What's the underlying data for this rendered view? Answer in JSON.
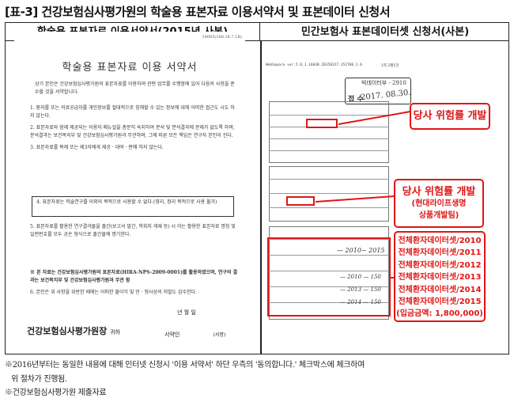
{
  "title": "[표-3] 건강보험심사평가원의 학술용 표본자료 이용서약서 및 표본데이터 신청서",
  "table": {
    "left_header": "학술용 표본자료 이용서약서(2015년 사본)",
    "right_header": "민간보험사 표본데이터셋 신청서(사본)"
  },
  "left_doc": {
    "code": "10005(180.16.7.1B)",
    "doc_title": "학술용 표본자료 이용 서약서",
    "intro": "상기 본인은 건강보험심사평가원의 표본자료를 이용하여 관련 업무를 수행함에 있어 다음의 사항을 준수할 것을 서약합니다.",
    "item1": "1. 환자를 또는 의료공급자를 개인정보를 절대적으로 침해할 수 있는 정보에 대해 어떠한 접근도 시도 하지 않는다.",
    "item2": "2. 표본자료와 함께 제공되는 이용자 매뉴얼을 충분히 숙지하여 분석 및 분석결과에 문제가 없도록 하며, 분석결과는 보건복지부 및 건강보험심사평가원과 무관하며, 그에 따른 모든 책임은 연구자 본인이 진다.",
    "item3": "3. 표본자료를 복제 또는 제3자에게 제공 · 대여 · 판매 하지 않는다.",
    "item4": "4. 표본자료는 학술연구를 이외의 목적으로 사용할 수 없다.(영리, 정리 목적으로 사용 불가)",
    "item5": "5. 표본자료를 활용한 연구결과물을 출간(보고서 발간, 학회지 게재 등) 시 아는 활용한 표본자료 명칭 및 일련번호를 모두 공손 형식으로 출간물에 명기한다.",
    "note": "※ 본 자료는 건강보험심사평가원의 표본자료(HIRA-NPS-2009-0001)를 활용하였으며, 연구의 결과는 보건복지부 및 건강보험심사평가원과 무관 함",
    "item6": "6. 본인은 위 사항을 위반한 때에는 어떠한 불이익 및 민 · 형사상의 처벌도 감수한다.",
    "date_label": "년     월     일",
    "signer_label": "서약인",
    "sign_mark": "(서명)",
    "org": "건강보험심사평가원장",
    "org_suffix": "귀하"
  },
  "right_doc": {
    "ws_line": "WebSquare ver.5.0_1.1603B.20150327.152708_1.6",
    "page_label": "1쪽 2월5건",
    "stamp_top": "빅데이터부 - 2910",
    "stamp_label": "접 수",
    "stamp_date": "2017. 08.30.",
    "hand_a": "— 2010~ 2015",
    "hand_b": "— 2010 — 150",
    "hand_c": "— 2013 — 150",
    "hand_d": "— 2014 — 150"
  },
  "callouts": {
    "c1": "당사 위험률 개발",
    "c2_main": "당사 위험률 개발",
    "c2_sub1": "(현대라이프생명",
    "c2_sub2": "상품개발팀)",
    "c3_lines": [
      "전체환자데이터셋/2010",
      "전체환자데이터셋/2011",
      "전체환자데이터셋/2012",
      "전체환자데이터셋/2013",
      "전체환자데이터셋/2014",
      "전체환자데이터셋/2015",
      "(입금금액: 1,800,000)"
    ]
  },
  "footnotes": {
    "f1": "※2016년부터는 동일한 내용에 대해 인터넷 신청시 '이용 서약서' 하단 우측의 '동의합니다.' 체크박스에 체크하여",
    "f1b": "위 절차가 진행됨.",
    "f2": "※건강보험심사평가원 제출자료"
  },
  "colors": {
    "callout_red": "#e01616",
    "border": "#222222"
  }
}
